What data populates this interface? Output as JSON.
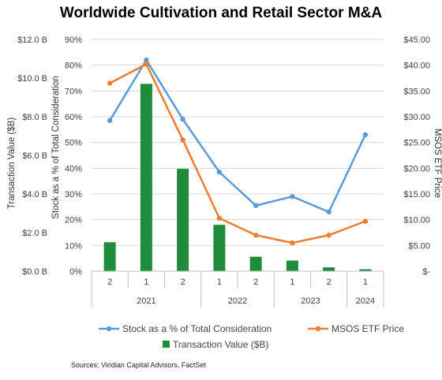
{
  "title": "Worldwide Cultivation and Retail Sector M&A",
  "source": "Sources: Viridian Capital Advisors, FactSet",
  "chart_data": {
    "type": "bar+line",
    "title": "Worldwide Cultivation and Retail Sector M&A",
    "categories": [
      "2",
      "1",
      "2",
      "1",
      "2",
      "1",
      "2",
      "1"
    ],
    "groups": [
      {
        "label": "2021",
        "span": 3
      },
      {
        "label": "2022",
        "span": 2
      },
      {
        "label": "2023",
        "span": 2
      },
      {
        "label": "2024",
        "span": 1
      }
    ],
    "axes": {
      "left_outer": {
        "label": "Transaction Value ($B)",
        "min": 0,
        "max": 12,
        "ticks": [
          "$0.0 B",
          "$2.0 B",
          "$4.0 B",
          "$6.0 B",
          "$8.0 B",
          "$10.0 B",
          "$12.0 B"
        ]
      },
      "left_inner": {
        "label": "Stock as a % of Total Consideration",
        "min": 0,
        "max": 90,
        "ticks": [
          "0%",
          "10%",
          "20%",
          "30%",
          "40%",
          "50%",
          "60%",
          "70%",
          "80%",
          "90%"
        ]
      },
      "right": {
        "label": "MSOS ETF Price",
        "min": 0,
        "max": 45,
        "ticks": [
          "$-",
          "$5.00",
          "$10.00",
          "$15.00",
          "$20.00",
          "$25.00",
          "$30.00",
          "$35.00",
          "$40.00",
          "$45.00"
        ]
      }
    },
    "series": [
      {
        "name": "Stock as a % of Total Consideration",
        "type": "line",
        "axis": "left_inner",
        "color": "#5B9BD5",
        "values": [
          58.5,
          82,
          59,
          38.5,
          25.5,
          29,
          23,
          53
        ]
      },
      {
        "name": "MSOS ETF Price",
        "type": "line",
        "axis": "right",
        "color": "#ED7D31",
        "values": [
          36.5,
          40.2,
          25.5,
          10.3,
          7,
          5.5,
          7,
          9.7
        ]
      },
      {
        "name": "Transaction Value ($B)",
        "type": "bar",
        "axis": "left_outer",
        "color": "#1E8C3A",
        "values": [
          1.5,
          9.7,
          5.3,
          2.4,
          0.75,
          0.55,
          0.2,
          0.1
        ]
      }
    ],
    "legend_position": "bottom",
    "grid": "horizontal"
  }
}
